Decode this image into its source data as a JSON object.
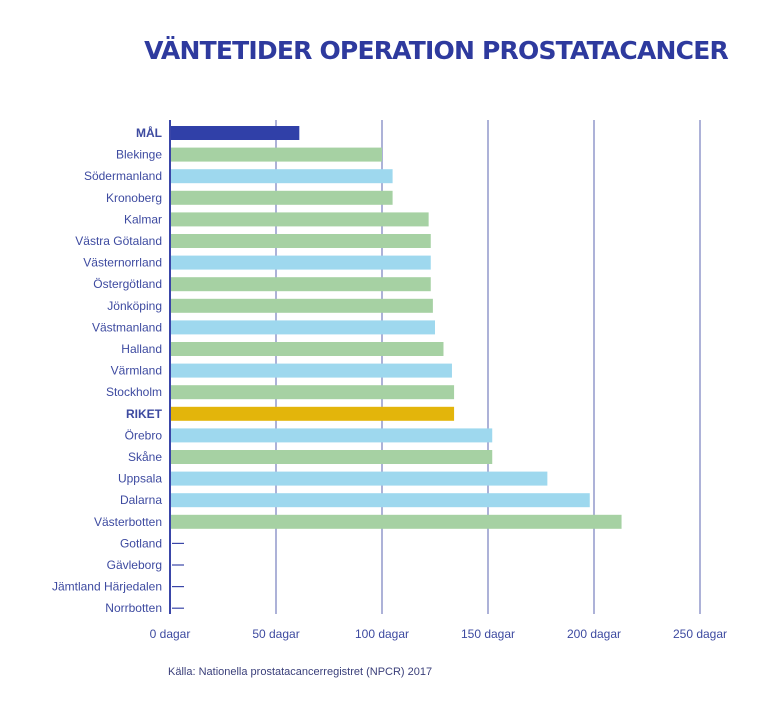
{
  "chart_data": {
    "type": "bar",
    "orientation": "horizontal",
    "title": "VÄNTETIDER OPERATION PROSTATACANCER",
    "source": "Källa: Nationella prostatacancerregistret (NPCR) 2017",
    "xlim": [
      0,
      250
    ],
    "xticks": [
      {
        "value": 0,
        "label": "0 dagar"
      },
      {
        "value": 50,
        "label": "50 dagar"
      },
      {
        "value": 100,
        "label": "100 dagar"
      },
      {
        "value": 150,
        "label": "150 dagar"
      },
      {
        "value": 200,
        "label": "200 dagar"
      },
      {
        "value": 250,
        "label": "250 dagar"
      }
    ],
    "grid": true,
    "colors": {
      "goal": "#3040a8",
      "national": "#e3b50b",
      "blue": "#9ed8ee",
      "green": "#a6d1a3",
      "axis": "#3a46a8",
      "label": "#3d4aa0",
      "grid": "#5b64b0"
    },
    "categories": [
      "MÅL",
      "Blekinge",
      "Södermanland",
      "Kronoberg",
      "Kalmar",
      "Västra Götaland",
      "Västernorrland",
      "Östergötland",
      "Jönköping",
      "Västmanland",
      "Halland",
      "Värmland",
      "Stockholm",
      "RIKET",
      "Örebro",
      "Skåne",
      "Uppsala",
      "Dalarna",
      "Västerbotten",
      "Gotland",
      "Gävleborg",
      "Jämtland Härjedalen",
      "Norrbotten"
    ],
    "values": [
      61,
      100,
      105,
      105,
      122,
      123,
      123,
      123,
      124,
      125,
      129,
      133,
      134,
      134,
      152,
      152,
      178,
      198,
      213,
      null,
      null,
      null,
      null
    ],
    "bar_colors": [
      "goal",
      "green",
      "blue",
      "green",
      "green",
      "green",
      "blue",
      "green",
      "green",
      "blue",
      "green",
      "blue",
      "green",
      "national",
      "blue",
      "green",
      "blue",
      "blue",
      "green",
      null,
      null,
      null,
      null
    ],
    "bold_categories": [
      "MÅL",
      "RIKET"
    ]
  }
}
